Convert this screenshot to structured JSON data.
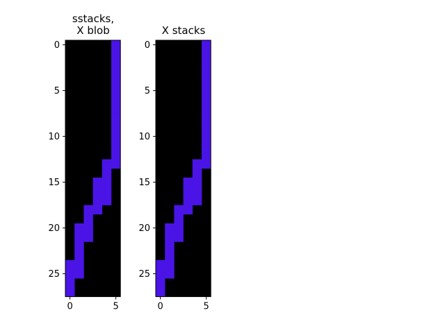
{
  "chart_data": [
    {
      "type": "heatmap",
      "title_lines": [
        "sstacks,",
        "X blob"
      ],
      "xlabel": "",
      "ylabel": "",
      "n_cols": 6,
      "n_rows": 28,
      "xticks": [
        0,
        5
      ],
      "yticks": [
        0,
        5,
        10,
        15,
        20,
        25
      ],
      "background_color": "#000000",
      "fill_color": "#4a14e6",
      "filled_cells": [
        [
          0,
          5
        ],
        [
          1,
          5
        ],
        [
          2,
          5
        ],
        [
          3,
          5
        ],
        [
          4,
          5
        ],
        [
          5,
          5
        ],
        [
          6,
          5
        ],
        [
          7,
          5
        ],
        [
          8,
          5
        ],
        [
          9,
          5
        ],
        [
          10,
          5
        ],
        [
          11,
          5
        ],
        [
          12,
          5
        ],
        [
          13,
          4
        ],
        [
          13,
          5
        ],
        [
          14,
          4
        ],
        [
          15,
          3
        ],
        [
          15,
          4
        ],
        [
          16,
          3
        ],
        [
          16,
          4
        ],
        [
          17,
          3
        ],
        [
          17,
          4
        ],
        [
          18,
          2
        ],
        [
          18,
          3
        ],
        [
          19,
          2
        ],
        [
          20,
          1
        ],
        [
          20,
          2
        ],
        [
          21,
          1
        ],
        [
          21,
          2
        ],
        [
          22,
          1
        ],
        [
          23,
          1
        ],
        [
          24,
          0
        ],
        [
          24,
          1
        ],
        [
          25,
          0
        ],
        [
          25,
          1
        ],
        [
          26,
          0
        ],
        [
          27,
          0
        ]
      ]
    },
    {
      "type": "heatmap",
      "title_lines": [
        "X stacks"
      ],
      "xlabel": "",
      "ylabel": "",
      "n_cols": 6,
      "n_rows": 28,
      "xticks": [
        0,
        5
      ],
      "yticks": [
        0,
        5,
        10,
        15,
        20,
        25
      ],
      "background_color": "#000000",
      "fill_color": "#4a14e6",
      "filled_cells": [
        [
          0,
          5
        ],
        [
          1,
          5
        ],
        [
          2,
          5
        ],
        [
          3,
          5
        ],
        [
          4,
          5
        ],
        [
          5,
          5
        ],
        [
          6,
          5
        ],
        [
          7,
          5
        ],
        [
          8,
          5
        ],
        [
          9,
          5
        ],
        [
          10,
          5
        ],
        [
          11,
          5
        ],
        [
          12,
          5
        ],
        [
          13,
          4
        ],
        [
          13,
          5
        ],
        [
          14,
          4
        ],
        [
          15,
          3
        ],
        [
          15,
          4
        ],
        [
          16,
          3
        ],
        [
          16,
          4
        ],
        [
          17,
          3
        ],
        [
          17,
          4
        ],
        [
          18,
          2
        ],
        [
          18,
          3
        ],
        [
          19,
          2
        ],
        [
          20,
          1
        ],
        [
          20,
          2
        ],
        [
          21,
          1
        ],
        [
          21,
          2
        ],
        [
          22,
          1
        ],
        [
          23,
          1
        ],
        [
          24,
          0
        ],
        [
          24,
          1
        ],
        [
          25,
          0
        ],
        [
          25,
          1
        ],
        [
          26,
          0
        ],
        [
          27,
          0
        ]
      ]
    }
  ]
}
